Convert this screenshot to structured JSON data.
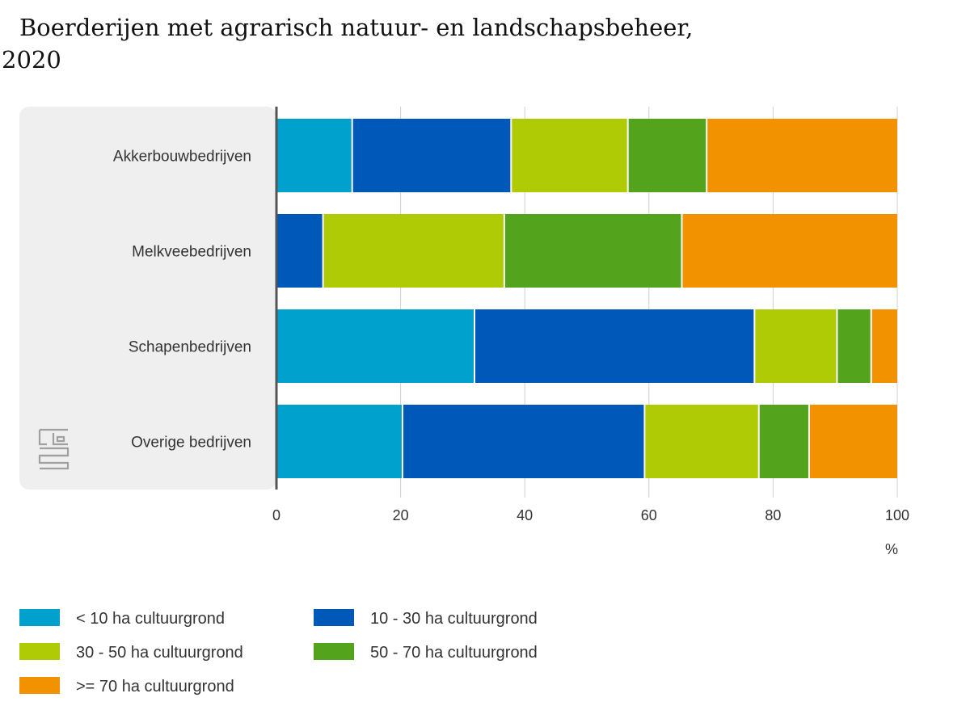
{
  "title": "Boerderijen met agrarisch natuur- en landschapsbeheer, 2020",
  "chart_data": {
    "type": "bar",
    "orientation": "horizontal",
    "stacked": true,
    "categories": [
      "Akkerbouwbedrijven",
      "Melkveebedrijven",
      "Schapenbedrijven",
      "Overige bedrijven"
    ],
    "series": [
      {
        "name": "< 10 ha cultuurgrond",
        "color": "#00a1cd",
        "values": [
          12.2,
          0,
          31.9,
          20.3
        ]
      },
      {
        "name": "10 - 30 ha cultuurgrond",
        "color": "#0058b8",
        "values": [
          25.6,
          7.5,
          45.1,
          39.0
        ]
      },
      {
        "name": "30 - 50 ha cultuurgrond",
        "color": "#afcb05",
        "values": [
          18.8,
          29.2,
          13.3,
          18.4
        ]
      },
      {
        "name": "50 - 70 ha cultuurgrond",
        "color": "#53a31d",
        "values": [
          12.7,
          28.6,
          5.5,
          8.1
        ]
      },
      {
        "name": ">= 70 ha cultuurgrond",
        "color": "#f39200",
        "values": [
          30.7,
          34.7,
          4.2,
          14.2
        ]
      }
    ],
    "xlim": [
      0,
      100
    ],
    "xticks": [
      "0",
      "20",
      "40",
      "60",
      "80",
      "100"
    ],
    "xlabel": "%",
    "grid": true,
    "legend_position": "bottom"
  }
}
